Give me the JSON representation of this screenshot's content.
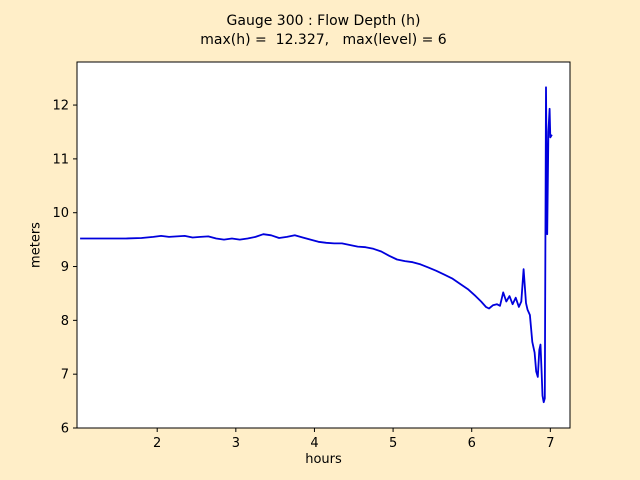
{
  "figure": {
    "background_color": "#ffeec8",
    "axes_background": "#ffffff",
    "axes_border_color": "#000000"
  },
  "chart_data": {
    "type": "line",
    "title": "Gauge 300 : Flow Depth (h)",
    "subtitle": "max(h) =  12.327,   max(level) = 6",
    "xlabel": "hours",
    "ylabel": "meters",
    "line_color": "#0000dd",
    "line_width": 1.8,
    "xlim": [
      0.98,
      7.25
    ],
    "ylim": [
      6,
      12.8
    ],
    "xticks": [
      2,
      3,
      4,
      5,
      6,
      7
    ],
    "yticks": [
      6,
      7,
      8,
      9,
      10,
      11,
      12
    ],
    "grid": false,
    "legend": null,
    "max_h": 12.327,
    "max_level": 6,
    "x": [
      1.02,
      1.2,
      1.4,
      1.6,
      1.8,
      1.95,
      2.05,
      2.15,
      2.25,
      2.35,
      2.45,
      2.55,
      2.65,
      2.75,
      2.85,
      2.95,
      3.05,
      3.15,
      3.25,
      3.35,
      3.45,
      3.55,
      3.65,
      3.75,
      3.85,
      3.95,
      4.05,
      4.15,
      4.25,
      4.35,
      4.45,
      4.55,
      4.65,
      4.75,
      4.85,
      4.95,
      5.05,
      5.15,
      5.25,
      5.35,
      5.45,
      5.55,
      5.65,
      5.75,
      5.85,
      5.95,
      6.05,
      6.12,
      6.18,
      6.22,
      6.27,
      6.32,
      6.36,
      6.4,
      6.44,
      6.48,
      6.52,
      6.56,
      6.6,
      6.63,
      6.66,
      6.69,
      6.71,
      6.74,
      6.77,
      6.8,
      6.82,
      6.84,
      6.86,
      6.875,
      6.89,
      6.9,
      6.915,
      6.93,
      6.945,
      6.96,
      6.975,
      6.99,
      7.0,
      7.02
    ],
    "y": [
      9.52,
      9.52,
      9.52,
      9.52,
      9.53,
      9.55,
      9.57,
      9.55,
      9.56,
      9.57,
      9.54,
      9.55,
      9.56,
      9.52,
      9.5,
      9.52,
      9.5,
      9.52,
      9.55,
      9.6,
      9.58,
      9.53,
      9.55,
      9.58,
      9.54,
      9.5,
      9.46,
      9.44,
      9.43,
      9.43,
      9.4,
      9.37,
      9.36,
      9.33,
      9.28,
      9.2,
      9.13,
      9.1,
      9.08,
      9.04,
      8.98,
      8.92,
      8.85,
      8.78,
      8.68,
      8.58,
      8.45,
      8.35,
      8.25,
      8.22,
      8.28,
      8.3,
      8.27,
      8.52,
      8.35,
      8.45,
      8.3,
      8.42,
      8.25,
      8.35,
      8.95,
      8.32,
      8.2,
      8.1,
      7.6,
      7.4,
      7.05,
      6.95,
      7.45,
      7.55,
      7.0,
      6.6,
      6.48,
      6.55,
      12.33,
      9.6,
      11.5,
      11.93,
      11.4,
      11.45
    ]
  }
}
